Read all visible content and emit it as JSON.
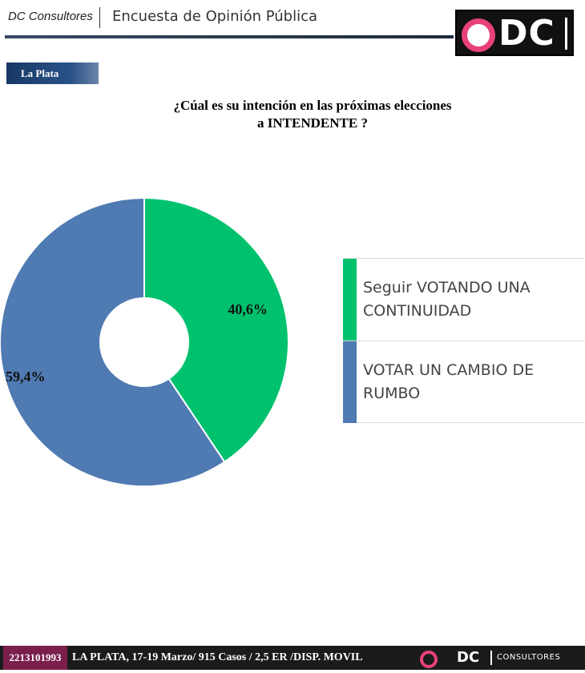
{
  "header": {
    "brand": "DC Consultores",
    "title": "Encuesta de Opinión Pública",
    "logo_text": "DC"
  },
  "region_label": "La Plata",
  "question_line1": "¿Cúal es su intención en  las próximas elecciones",
  "question_line2": "a INTENDENTE ?",
  "colors": {
    "continuity": "#00c26e",
    "change": "#4f7ab2",
    "accent": "#e8417c"
  },
  "chart_data": {
    "type": "pie",
    "donut": true,
    "slices": [
      {
        "label": "Seguir VOTANDO UNA CONTINUIDAD",
        "value": 40.6,
        "display": "40,6%",
        "color": "#00c26e"
      },
      {
        "label": "VOTAR UN CAMBIO DE RUMBO",
        "value": 59.4,
        "display": "59,4%",
        "color": "#4f7ab2"
      }
    ],
    "legend_position": "right"
  },
  "footer": {
    "phone": "2213101993",
    "info": "LA PLATA, 17-19 Marzo/ 915 Casos / 2,5 ER /DISP. MOVIL",
    "logo_text": "DC",
    "consultores": "CONSULTORES"
  }
}
